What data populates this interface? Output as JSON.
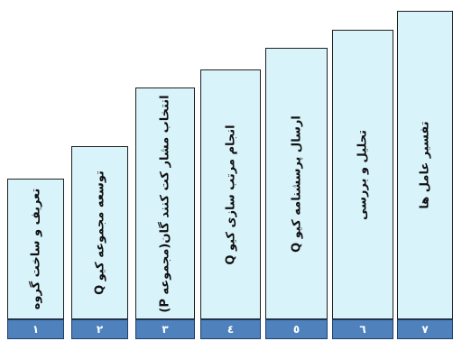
{
  "steps": [
    {
      "number": "١",
      "label": "تعریف و ساخت گروه"
    },
    {
      "number": "٢",
      "label": "توسعه مجموعه کیو Q"
    },
    {
      "number": "٣",
      "label": "انتخاب مشار کت کنند گان(مجموعه P)"
    },
    {
      "number": "٤",
      "label": "انجام مرتب سازی کیو Q"
    },
    {
      "number": "٥",
      "label": "ارسال پرسشنامه کیو Q"
    },
    {
      "number": "٦",
      "label": "تحلیل و بررسی"
    },
    {
      "number": "٧",
      "label": "تفسیر عامل ها"
    }
  ],
  "colors": {
    "step_fill": "#d9f3fb",
    "number_fill": "#4f81bd",
    "border": "#1f1f1f"
  }
}
